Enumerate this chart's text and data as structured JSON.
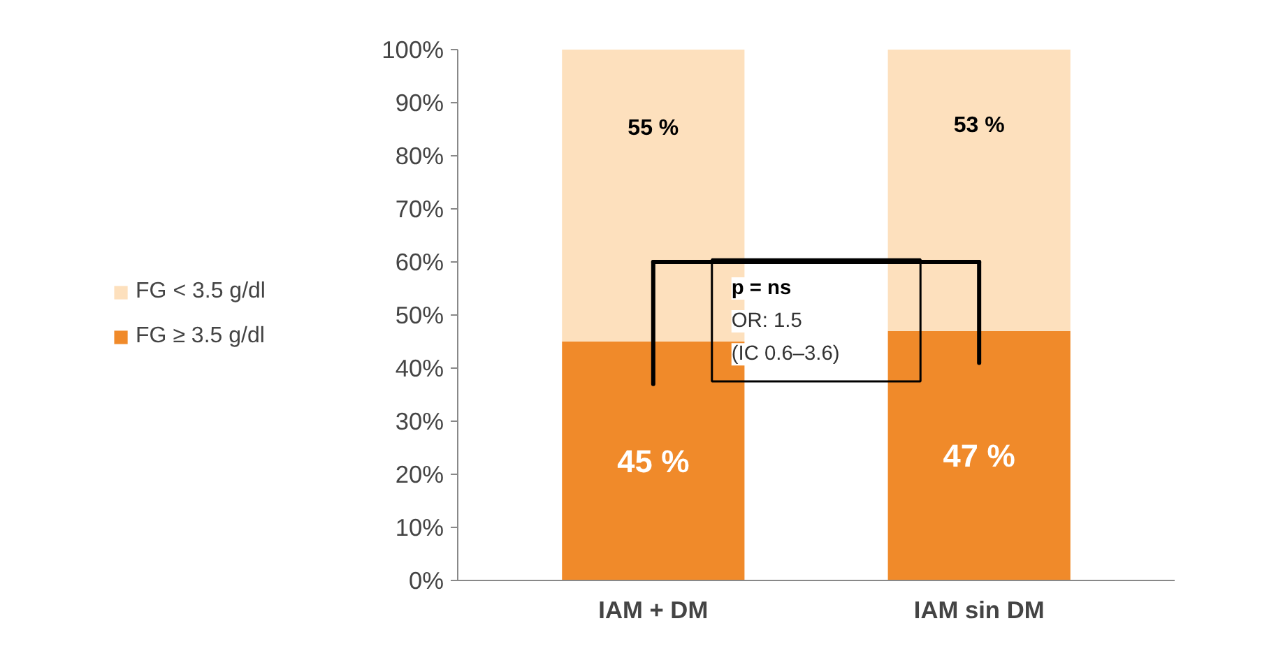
{
  "chart_data": {
    "type": "bar",
    "stacked": true,
    "categories": [
      "IAM + DM",
      "IAM sin DM"
    ],
    "series": [
      {
        "name": "FG ≥ 3.5 g/dl",
        "color": "#f08a2a",
        "values": [
          45,
          47
        ],
        "value_labels": [
          "45 %",
          "47 %"
        ]
      },
      {
        "name": "FG < 3.5 g/dl",
        "color": "#fde0bd",
        "values": [
          55,
          53
        ],
        "value_labels": [
          "55 %",
          "53 %"
        ]
      }
    ],
    "ylim": [
      0,
      100
    ],
    "yticks": [
      {
        "value": 0,
        "label": "0%"
      },
      {
        "value": 10,
        "label": "10%"
      },
      {
        "value": 20,
        "label": "20%"
      },
      {
        "value": 30,
        "label": "30%"
      },
      {
        "value": 40,
        "label": "40%"
      },
      {
        "value": 50,
        "label": "50%"
      },
      {
        "value": 60,
        "label": "60%"
      },
      {
        "value": 70,
        "label": "70%"
      },
      {
        "value": 80,
        "label": "80%"
      },
      {
        "value": 90,
        "label": "90%"
      },
      {
        "value": 100,
        "label": "100%"
      }
    ],
    "legend": "left",
    "grid": false,
    "annotations": [
      "p = ns",
      "OR: 1.5",
      "(IC 0.6–3.6)"
    ]
  }
}
